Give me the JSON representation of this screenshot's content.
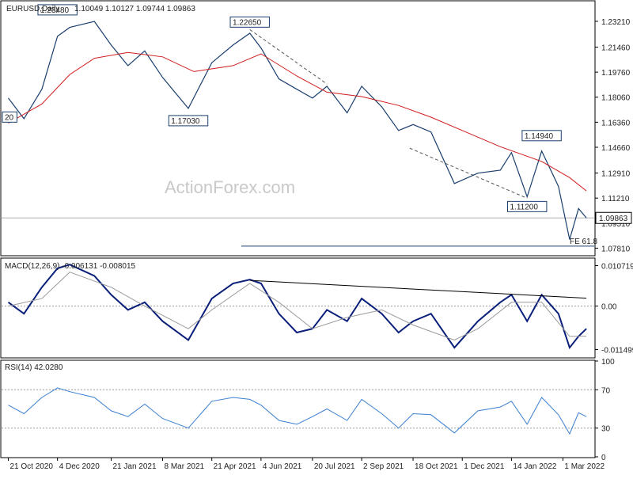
{
  "chart_data": [
    {
      "type": "line",
      "panel": "price",
      "title": "EURUSD,Daily",
      "ohlc_label": "1.10049 1.10127 1.09744 1.09863",
      "price_ticks": [
        "1.23210",
        "1.21460",
        "1.19760",
        "1.18060",
        "1.16360",
        "1.14660",
        "1.12910",
        "1.11210",
        "1.09510",
        "1.07810"
      ],
      "ylim": [
        1.0735,
        1.2455
      ],
      "last_price": "1.09863",
      "last_price_value": 1.09863,
      "watermark": "ActionForex.com",
      "annotations": [
        {
          "label": "1.23480",
          "x": "2020-12-04",
          "y": 1.2348
        },
        {
          "label": "1.22650",
          "x": "2021-05-25",
          "y": 1.2265
        },
        {
          "label": "1.17030",
          "x": "2021-03-31",
          "y": 1.1703
        },
        {
          "label": "1.14940",
          "x": "2022-02-10",
          "y": 1.1494
        },
        {
          "label": "1.11200",
          "x": "2022-01-28",
          "y": 1.112
        },
        {
          "label": "20",
          "x": "2020-10-21",
          "y": 1.162
        }
      ],
      "fe_label": "FE 61.8",
      "fe_level": 1.0795,
      "trendlines": [
        {
          "from": {
            "x": "2021-05-25",
            "y": 1.2265
          },
          "to": {
            "x": "2021-08-02",
            "y": 1.1895
          }
        },
        {
          "from": {
            "x": "2021-10-15",
            "y": 1.146
          },
          "to": {
            "x": "2022-01-28",
            "y": 1.112
          }
        }
      ],
      "series": [
        {
          "color": "#1a3f6e",
          "points": [
            [
              "2020-10-21",
              1.18
            ],
            [
              "2020-11-04",
              1.166
            ],
            [
              "2020-11-20",
              1.186
            ],
            [
              "2020-12-04",
              1.222
            ],
            [
              "2020-12-15",
              1.228
            ],
            [
              "2021-01-06",
              1.232
            ],
            [
              "2021-01-21",
              1.216
            ],
            [
              "2021-02-05",
              1.202
            ],
            [
              "2021-02-20",
              1.212
            ],
            [
              "2021-03-08",
              1.194
            ],
            [
              "2021-03-31",
              1.173
            ],
            [
              "2021-04-21",
              1.204
            ],
            [
              "2021-05-10",
              1.216
            ],
            [
              "2021-05-25",
              1.224
            ],
            [
              "2021-06-04",
              1.214
            ],
            [
              "2021-06-20",
              1.193
            ],
            [
              "2021-07-06",
              1.186
            ],
            [
              "2021-07-20",
              1.18
            ],
            [
              "2021-08-02",
              1.188
            ],
            [
              "2021-08-20",
              1.17
            ],
            [
              "2021-09-02",
              1.188
            ],
            [
              "2021-09-20",
              1.174
            ],
            [
              "2021-10-05",
              1.158
            ],
            [
              "2021-10-18",
              1.162
            ],
            [
              "2021-11-03",
              1.157
            ],
            [
              "2021-11-24",
              1.122
            ],
            [
              "2021-12-15",
              1.129
            ],
            [
              "2022-01-04",
              1.131
            ],
            [
              "2022-01-14",
              1.143
            ],
            [
              "2022-01-28",
              1.113
            ],
            [
              "2022-02-10",
              1.144
            ],
            [
              "2022-02-25",
              1.12
            ],
            [
              "2022-03-07",
              1.084
            ],
            [
              "2022-03-15",
              1.105
            ],
            [
              "2022-03-22",
              1.0986
            ]
          ]
        },
        {
          "color": "#d11a1a",
          "points": [
            [
              "2020-10-21",
              1.163
            ],
            [
              "2020-11-20",
              1.176
            ],
            [
              "2020-12-15",
              1.196
            ],
            [
              "2021-01-06",
              1.207
            ],
            [
              "2021-02-05",
              1.211
            ],
            [
              "2021-03-08",
              1.208
            ],
            [
              "2021-04-05",
              1.198
            ],
            [
              "2021-05-10",
              1.202
            ],
            [
              "2021-06-04",
              1.21
            ],
            [
              "2021-07-06",
              1.195
            ],
            [
              "2021-08-02",
              1.184
            ],
            [
              "2021-09-02",
              1.181
            ],
            [
              "2021-10-05",
              1.175
            ],
            [
              "2021-11-03",
              1.167
            ],
            [
              "2021-12-01",
              1.158
            ],
            [
              "2022-01-04",
              1.147
            ],
            [
              "2022-02-10",
              1.137
            ],
            [
              "2022-03-07",
              1.126
            ],
            [
              "2022-03-22",
              1.117
            ]
          ]
        }
      ]
    },
    {
      "type": "line",
      "panel": "macd",
      "title": "MACD(12,26,9) -0.006131 -0.008015",
      "ticks": [
        "0.010719",
        "0.00",
        "-0.011499"
      ],
      "ylim": [
        -0.0135,
        0.0125
      ],
      "trendline": {
        "from": {
          "x": "2021-05-25",
          "y": 0.0068
        },
        "to": {
          "x": "2022-03-22",
          "y": 0.0021
        }
      },
      "series": [
        {
          "color": "#0a1f7a",
          "points": [
            [
              "2020-10-21",
              0.001
            ],
            [
              "2020-11-04",
              -0.002
            ],
            [
              "2020-11-20",
              0.005
            ],
            [
              "2020-12-04",
              0.01
            ],
            [
              "2020-12-15",
              0.011
            ],
            [
              "2021-01-06",
              0.008
            ],
            [
              "2021-01-21",
              0.003
            ],
            [
              "2021-02-05",
              -0.001
            ],
            [
              "2021-02-20",
              0.001
            ],
            [
              "2021-03-08",
              -0.004
            ],
            [
              "2021-03-31",
              -0.009
            ],
            [
              "2021-04-21",
              0.002
            ],
            [
              "2021-05-10",
              0.006
            ],
            [
              "2021-05-25",
              0.007
            ],
            [
              "2021-06-04",
              0.006
            ],
            [
              "2021-06-20",
              -0.002
            ],
            [
              "2021-07-06",
              -0.007
            ],
            [
              "2021-07-20",
              -0.006
            ],
            [
              "2021-08-02",
              -0.001
            ],
            [
              "2021-08-20",
              -0.004
            ],
            [
              "2021-09-02",
              0.002
            ],
            [
              "2021-09-20",
              -0.002
            ],
            [
              "2021-10-05",
              -0.007
            ],
            [
              "2021-10-18",
              -0.004
            ],
            [
              "2021-11-03",
              -0.002
            ],
            [
              "2021-11-24",
              -0.011
            ],
            [
              "2021-12-15",
              -0.004
            ],
            [
              "2022-01-04",
              0.001
            ],
            [
              "2022-01-14",
              0.003
            ],
            [
              "2022-01-28",
              -0.004
            ],
            [
              "2022-02-10",
              0.003
            ],
            [
              "2022-02-25",
              -0.002
            ],
            [
              "2022-03-07",
              -0.011
            ],
            [
              "2022-03-15",
              -0.008
            ],
            [
              "2022-03-22",
              -0.006
            ]
          ]
        },
        {
          "color": "#9a9a9a",
          "points": [
            [
              "2020-10-21",
              0.0
            ],
            [
              "2020-11-20",
              0.002
            ],
            [
              "2020-12-15",
              0.009
            ],
            [
              "2021-01-21",
              0.005
            ],
            [
              "2021-02-20",
              0.0
            ],
            [
              "2021-03-31",
              -0.006
            ],
            [
              "2021-04-21",
              -0.001
            ],
            [
              "2021-05-25",
              0.006
            ],
            [
              "2021-06-20",
              0.001
            ],
            [
              "2021-07-20",
              -0.006
            ],
            [
              "2021-08-20",
              -0.003
            ],
            [
              "2021-09-20",
              -0.001
            ],
            [
              "2021-10-18",
              -0.005
            ],
            [
              "2021-11-24",
              -0.009
            ],
            [
              "2021-12-15",
              -0.006
            ],
            [
              "2022-01-14",
              0.001
            ],
            [
              "2022-02-10",
              0.001
            ],
            [
              "2022-03-07",
              -0.008
            ],
            [
              "2022-03-22",
              -0.008
            ]
          ]
        }
      ]
    },
    {
      "type": "line",
      "panel": "rsi",
      "title": "RSI(14) 42.0280",
      "ticks": [
        "100",
        "70",
        "30",
        "0"
      ],
      "ylim": [
        0,
        100
      ],
      "levels": [
        70,
        30
      ],
      "series": [
        {
          "color": "#3a7fd0",
          "points": [
            [
              "2020-10-21",
              54
            ],
            [
              "2020-11-04",
              45
            ],
            [
              "2020-11-20",
              62
            ],
            [
              "2020-12-04",
              72
            ],
            [
              "2020-12-15",
              68
            ],
            [
              "2021-01-06",
              62
            ],
            [
              "2021-01-21",
              48
            ],
            [
              "2021-02-05",
              42
            ],
            [
              "2021-02-20",
              55
            ],
            [
              "2021-03-08",
              40
            ],
            [
              "2021-03-31",
              30
            ],
            [
              "2021-04-21",
              58
            ],
            [
              "2021-05-10",
              62
            ],
            [
              "2021-05-25",
              60
            ],
            [
              "2021-06-04",
              54
            ],
            [
              "2021-06-20",
              38
            ],
            [
              "2021-07-06",
              34
            ],
            [
              "2021-07-20",
              42
            ],
            [
              "2021-08-02",
              50
            ],
            [
              "2021-08-20",
              38
            ],
            [
              "2021-09-02",
              60
            ],
            [
              "2021-09-20",
              45
            ],
            [
              "2021-10-05",
              30
            ],
            [
              "2021-10-18",
              45
            ],
            [
              "2021-11-03",
              44
            ],
            [
              "2021-11-24",
              25
            ],
            [
              "2021-12-15",
              48
            ],
            [
              "2022-01-04",
              52
            ],
            [
              "2022-01-14",
              58
            ],
            [
              "2022-01-28",
              34
            ],
            [
              "2022-02-10",
              62
            ],
            [
              "2022-02-25",
              44
            ],
            [
              "2022-03-07",
              24
            ],
            [
              "2022-03-15",
              46
            ],
            [
              "2022-03-22",
              42
            ]
          ]
        }
      ]
    }
  ],
  "x_axis": {
    "ticks": [
      {
        "label": "21 Oct 2020",
        "x": "2020-10-21"
      },
      {
        "label": "4 Dec 2020",
        "x": "2020-12-04"
      },
      {
        "label": "21 Jan 2021",
        "x": "2021-01-21"
      },
      {
        "label": "8 Mar 2021",
        "x": "2021-03-08"
      },
      {
        "label": "21 Apr 2021",
        "x": "2021-04-21"
      },
      {
        "label": "4 Jun 2021",
        "x": "2021-06-04"
      },
      {
        "label": "20 Jul 2021",
        "x": "2021-07-20"
      },
      {
        "label": "2 Sep 2021",
        "x": "2021-09-02"
      },
      {
        "label": "18 Oct 2021",
        "x": "2021-10-18"
      },
      {
        "label": "1 Dec 2021",
        "x": "2021-12-01"
      },
      {
        "label": "14 Jan 2022",
        "x": "2022-01-14"
      },
      {
        "label": "1 Mar 2022",
        "x": "2022-03-01"
      }
    ],
    "range": [
      "2020-10-15",
      "2022-03-29"
    ]
  }
}
